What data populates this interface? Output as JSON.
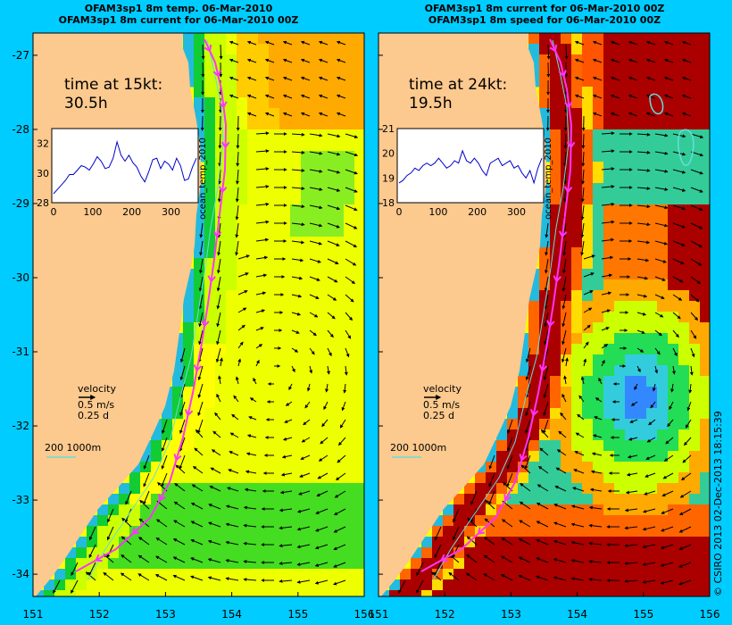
{
  "colors": {
    "background": "#00ccff",
    "land": "#fcc98e",
    "track": "#ff33ff",
    "isobath": "#66dddd",
    "vector": "#000000"
  },
  "side_label": "© CSIRO 2013   02-Dec-2013 18:15:39",
  "chart_data": [
    {
      "type": "heatmap",
      "title_line1": "OFAM3sp1 8m temp. 06-Mar-2010",
      "title_line2": "OFAM3sp1 8m current for 06-Mar-2010 00Z",
      "x_ticks": [
        "151",
        "152",
        "153",
        "154",
        "155",
        "156"
      ],
      "y_ticks": [
        "-27",
        "-28",
        "-29",
        "-30",
        "-31",
        "-32",
        "-33",
        "-34"
      ],
      "xlim": [
        151,
        156
      ],
      "ylim": [
        -34.3,
        -26.7
      ],
      "time_label_line1": "time at 15kt:",
      "time_label_line2": "30.5h",
      "inset_ylabel": "ocean_temp_2010",
      "inset_yticks": [
        "28",
        "30",
        "32"
      ],
      "inset_xticks": [
        "0",
        "100",
        "200",
        "300"
      ],
      "inset_ylim": [
        28,
        33
      ],
      "inset_series": [
        28.6,
        28.9,
        29.2,
        29.5,
        29.9,
        29.9,
        30.2,
        30.5,
        30.4,
        30.2,
        30.6,
        31.1,
        30.8,
        30.3,
        30.4,
        31.0,
        32.1,
        31.2,
        30.8,
        31.2,
        30.7,
        30.4,
        29.8,
        29.4,
        30.1,
        30.9,
        31.0,
        30.3,
        30.8,
        30.6,
        30.2,
        31.0,
        30.5,
        29.5,
        29.6,
        30.4,
        31.0
      ],
      "velocity_label": "velocity",
      "velocity_scale": "0.5 m/s",
      "velocity_time": "0.25 d",
      "isobath_label": "200  1000m",
      "stream_type": "temp"
    },
    {
      "type": "heatmap",
      "title_line1": "OFAM3sp1 8m current for 06-Mar-2010 00Z",
      "title_line2": "OFAM3sp1 8m speed for 06-Mar-2010 00Z",
      "x_ticks": [
        "151",
        "152",
        "153",
        "154",
        "155",
        "156"
      ],
      "y_ticks": [
        "-27",
        "-28",
        "-29",
        "-30",
        "-31",
        "-32",
        "-33",
        "-34"
      ],
      "xlim": [
        151,
        156
      ],
      "ylim": [
        -34.3,
        -26.7
      ],
      "time_label_line1": "time at 24kt:",
      "time_label_line2": "19.5h",
      "inset_ylabel": "ocean_temp_2010",
      "inset_yticks": [
        "18",
        "19",
        "20",
        "21"
      ],
      "inset_xticks": [
        "0",
        "100",
        "200",
        "300"
      ],
      "inset_ylim": [
        18,
        21
      ],
      "inset_series": [
        18.8,
        18.9,
        19.1,
        19.2,
        19.4,
        19.3,
        19.5,
        19.6,
        19.5,
        19.6,
        19.8,
        19.6,
        19.4,
        19.5,
        19.7,
        19.6,
        20.1,
        19.7,
        19.6,
        19.8,
        19.6,
        19.3,
        19.1,
        19.6,
        19.7,
        19.8,
        19.5,
        19.6,
        19.7,
        19.4,
        19.5,
        19.2,
        19.0,
        19.3,
        18.8,
        19.4,
        19.8
      ],
      "velocity_label": "velocity",
      "velocity_scale": "0.5 m/s",
      "velocity_time": "0.25 d",
      "isobath_label": "200  1000m",
      "stream_type": "speed"
    }
  ]
}
